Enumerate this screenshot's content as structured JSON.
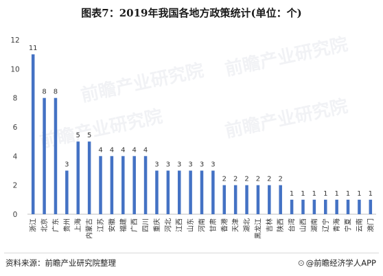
{
  "chart_data": {
    "type": "bar",
    "title": "图表7：2019年我国各地方政策统计(单位：个)",
    "categories": [
      "浙江",
      "北京",
      "广东",
      "贵州",
      "上海",
      "内蒙古",
      "江苏",
      "安徽",
      "福建",
      "广西",
      "四川",
      "重庆",
      "河北",
      "江西",
      "山东",
      "河南",
      "甘肃",
      "香港",
      "天津",
      "湖北",
      "黑龙江",
      "吉林",
      "陕西",
      "台湾",
      "山西",
      "湖南",
      "辽宁",
      "青海",
      "宁夏",
      "云南",
      "澳门"
    ],
    "values": [
      11,
      8,
      8,
      3,
      5,
      5,
      4,
      4,
      4,
      4,
      4,
      3,
      3,
      3,
      3,
      3,
      3,
      2,
      2,
      2,
      2,
      2,
      2,
      1,
      1,
      1,
      1,
      1,
      1,
      1,
      1
    ],
    "ylim": [
      0,
      12
    ],
    "yticks": [
      0,
      2,
      4,
      6,
      8,
      10,
      12
    ],
    "xlabel": "",
    "ylabel": "",
    "grid": false,
    "bar_color": "#4472c4",
    "data_labels": true
  },
  "footer": {
    "source": "资料来源：前瞻产业研究院整理",
    "credit": "@前瞻经济学人APP",
    "credit_icon": "camera-icon"
  },
  "watermark": {
    "text": "前瞻产业研究院"
  }
}
